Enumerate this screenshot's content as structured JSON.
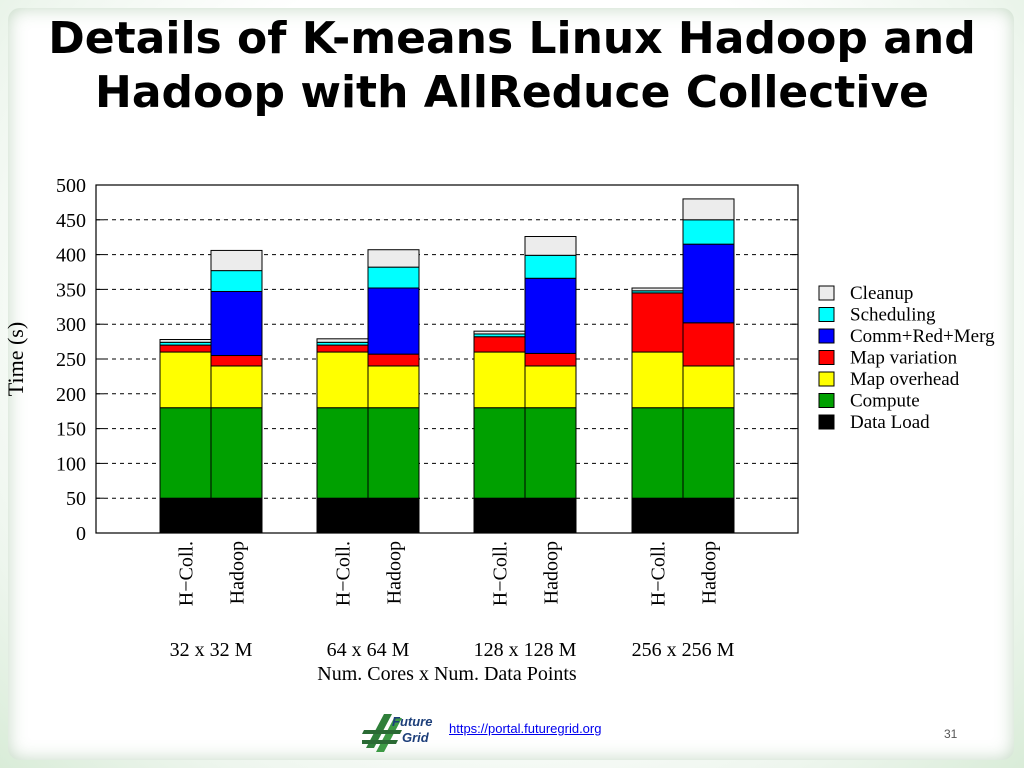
{
  "slide": {
    "title_line1": "Details of K-means Linux Hadoop and",
    "title_line2": "Hadoop with AllReduce Collective",
    "link": "https://portal.futuregrid.org",
    "page_number": "31",
    "logo_text_1": "Future",
    "logo_text_2": "Grid"
  },
  "chart_data": {
    "type": "bar",
    "stacked": true,
    "title": "",
    "ylabel": "Time (s)",
    "xlabel": "Num. Cores x Num. Data Points",
    "ylim": [
      0,
      500
    ],
    "yticks": [
      0,
      50,
      100,
      150,
      200,
      250,
      300,
      350,
      400,
      450,
      500
    ],
    "grid": "horizontal dashed",
    "legend_position": "right",
    "groups": [
      "32 x 32 M",
      "64 x 64 M",
      "128 x 128 M",
      "256 x 256 M"
    ],
    "bars": [
      "H−Coll.",
      "Hadoop"
    ],
    "categories": [
      "32 x 32 M / H−Coll.",
      "32 x 32 M / Hadoop",
      "64 x 64 M / H−Coll.",
      "64 x 64 M / Hadoop",
      "128 x 128 M / H−Coll.",
      "128 x 128 M / Hadoop",
      "256 x 256 M / H−Coll.",
      "256 x 256 M / Hadoop"
    ],
    "series": [
      {
        "name": "Data Load",
        "color": "#000000",
        "values": [
          50,
          50,
          50,
          50,
          50,
          50,
          50,
          50
        ]
      },
      {
        "name": "Compute",
        "color": "#00a000",
        "values": [
          130,
          130,
          130,
          130,
          130,
          130,
          130,
          130
        ]
      },
      {
        "name": "Map overhead",
        "color": "#ffff00",
        "values": [
          80,
          60,
          80,
          60,
          80,
          60,
          80,
          60
        ]
      },
      {
        "name": "Map variation",
        "color": "#ff0000",
        "values": [
          10,
          15,
          10,
          17,
          22,
          18,
          85,
          62
        ]
      },
      {
        "name": "Comm+Red+Merg",
        "color": "#0000ff",
        "values": [
          0,
          92,
          0,
          95,
          0,
          108,
          0,
          113
        ]
      },
      {
        "name": "Scheduling",
        "color": "#00ffff",
        "values": [
          4,
          30,
          4,
          30,
          4,
          33,
          3,
          35
        ]
      },
      {
        "name": "Cleanup",
        "color": "#ececec",
        "values": [
          4,
          29,
          5,
          25,
          4,
          27,
          4,
          30
        ]
      }
    ],
    "legend_order": [
      "Cleanup",
      "Scheduling",
      "Comm+Red+Merg",
      "Map variation",
      "Map overhead",
      "Compute",
      "Data Load"
    ]
  }
}
